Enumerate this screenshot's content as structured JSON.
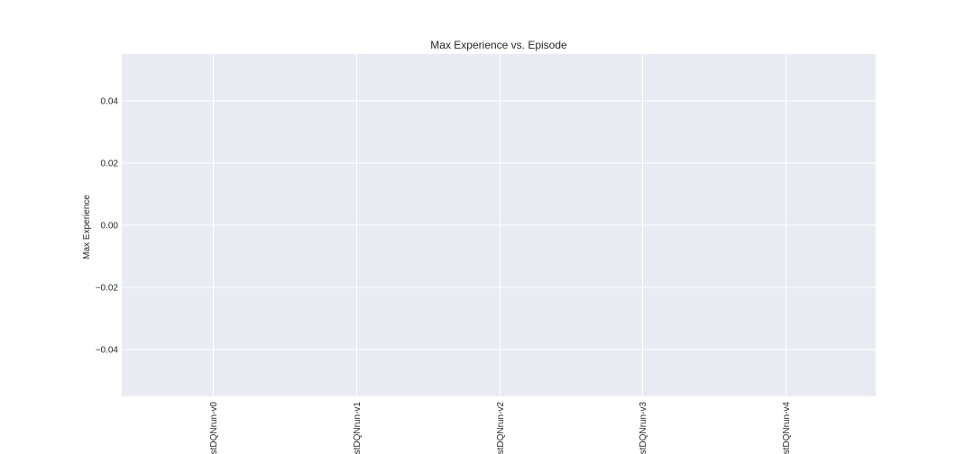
{
  "chart_data": {
    "type": "scatter",
    "title": "Max Experience vs. Episode",
    "xlabel": "",
    "ylabel": "Max Experience",
    "categories": [
      "stDQNrun-v0",
      "stDQNrun-v1",
      "stDQNrun-v2",
      "stDQNrun-v3",
      "stDQNrun-v4"
    ],
    "ylim": [
      -0.055,
      0.055
    ],
    "yticks": [
      -0.04,
      -0.02,
      0.0,
      0.02,
      0.04
    ],
    "ytick_labels": [
      "−0.04",
      "−0.02",
      "0.00",
      "0.02",
      "0.04"
    ],
    "series": [],
    "grid": true,
    "legend": "none"
  },
  "colors": {
    "plot_background": "#eaeaf2",
    "grid": "#ffffff",
    "text": "#262626"
  }
}
